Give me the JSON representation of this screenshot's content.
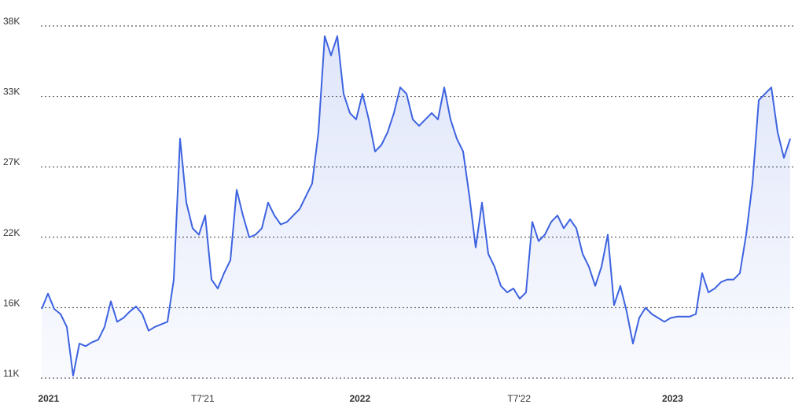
{
  "chart_data": {
    "type": "area",
    "color": "#3d63e0",
    "values": [
      16200,
      17400,
      16200,
      15800,
      14800,
      11000,
      13500,
      13300,
      13600,
      13800,
      14800,
      16800,
      15200,
      15500,
      16000,
      16400,
      15800,
      14500,
      14800,
      15000,
      15200,
      18500,
      29500,
      24500,
      22500,
      22000,
      23500,
      18500,
      17800,
      19000,
      20000,
      25500,
      23500,
      21800,
      22000,
      22500,
      24500,
      23500,
      22800,
      23000,
      23500,
      24000,
      25000,
      26000,
      30000,
      37500,
      36000,
      37500,
      33000,
      31500,
      31000,
      33000,
      31000,
      28500,
      29000,
      30000,
      31500,
      33500,
      33000,
      31000,
      30500,
      31000,
      31500,
      31000,
      33500,
      31000,
      29500,
      28500,
      25000,
      21000,
      24500,
      20500,
      19500,
      18000,
      17500,
      17800,
      17000,
      17500,
      23000,
      21500,
      22000,
      23000,
      23500,
      22500,
      23200,
      22500,
      20500,
      19500,
      18000,
      19500,
      22000,
      16500,
      18000,
      16000,
      13500,
      15500,
      16300,
      15800,
      15500,
      15200,
      15500,
      15600,
      15600,
      15600,
      15800,
      19000,
      17500,
      17800,
      18300,
      18500,
      18500,
      19000,
      22000,
      26000,
      32500,
      33000,
      33500,
      30000,
      28000,
      29500
    ],
    "xlim": [
      0,
      119
    ],
    "xticks": [
      {
        "value": 1.1,
        "label": "2021"
      },
      {
        "value": 25.6,
        "label": "T7'21"
      },
      {
        "value": 50.6,
        "label": "2022"
      },
      {
        "value": 75.9,
        "label": "T7'22"
      },
      {
        "value": 100.3,
        "label": "2023"
      }
    ],
    "ylim": [
      10800,
      38300
    ],
    "yticks": [
      {
        "value": 10800,
        "label": "11K"
      },
      {
        "value": 16300,
        "label": "16K"
      },
      {
        "value": 21800,
        "label": "22K"
      },
      {
        "value": 27300,
        "label": "27K"
      },
      {
        "value": 32800,
        "label": "33K"
      },
      {
        "value": 38300,
        "label": "38K"
      }
    ],
    "grid": true
  }
}
